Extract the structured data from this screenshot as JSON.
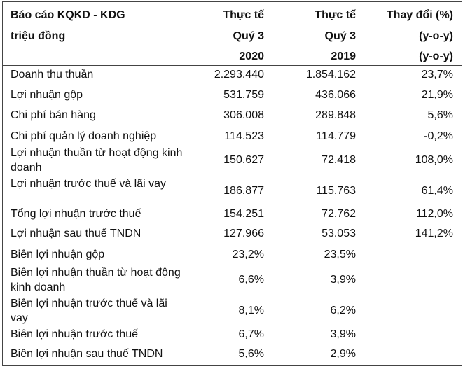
{
  "header": {
    "title_line1": "Báo cáo KQKD  - KDG",
    "title_line2": "triệu đồng",
    "col1": [
      "Thực tế",
      "Quý 3",
      "2020"
    ],
    "col2": [
      "Thực tế",
      "Quý 3",
      "2019"
    ],
    "col3": [
      "Thay đổi (%)",
      "(y-o-y)",
      "(y-o-y)"
    ]
  },
  "section1": [
    {
      "label": "Doanh thu thuần",
      "v2020": "2.293.440",
      "v2019": "1.854.162",
      "change": "23,7%"
    },
    {
      "label": "Lợi nhuận gộp",
      "v2020": "531.759",
      "v2019": "436.066",
      "change": "21,9%"
    },
    {
      "label": "Chi phí bán hàng",
      "v2020": "306.008",
      "v2019": "289.848",
      "change": "5,6%"
    },
    {
      "label": "Chi phí quản lý doanh nghiệp",
      "v2020": "114.523",
      "v2019": "114.779",
      "change": "-0,2%"
    },
    {
      "label": "Lợi nhuận thuần từ hoạt động kinh doanh",
      "v2020": "150.627",
      "v2019": "72.418",
      "change": "108,0%"
    },
    {
      "label": "Lợi nhuận trước thuế và lãi vay",
      "v2020": "186.877",
      "v2019": "115.763",
      "change": "61,4%"
    },
    {
      "label": "Tổng lợi nhuận trước thuế",
      "v2020": "154.251",
      "v2019": "72.762",
      "change": "112,0%"
    },
    {
      "label": "Lợi nhuận sau thuế TNDN",
      "v2020": "127.966",
      "v2019": "53.053",
      "change": "141,2%"
    }
  ],
  "section2": [
    {
      "label": "Biên lợi nhuận gộp",
      "v2020": "23,2%",
      "v2019": "23,5%"
    },
    {
      "label": "Biên lợi nhuận thuần từ hoạt động kinh doanh",
      "v2020": "6,6%",
      "v2019": "3,9%"
    },
    {
      "label": "Biên lợi nhuận trước thuế và lãi vay",
      "v2020": "8,1%",
      "v2019": "6,2%"
    },
    {
      "label": "Biên lợi nhuận trước thuế",
      "v2020": "6,7%",
      "v2019": "3,9%"
    },
    {
      "label": "Biên lợi nhuận sau thuế TNDN",
      "v2020": "5,6%",
      "v2019": "2,9%"
    }
  ]
}
